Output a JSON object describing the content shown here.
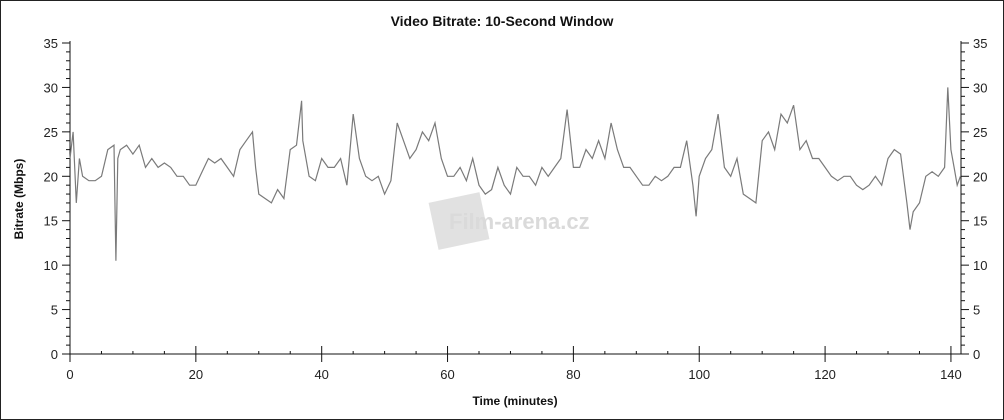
{
  "chart_data": {
    "type": "line",
    "title": "Video Bitrate: 10-Second Window",
    "xlabel": "Time (minutes)",
    "ylabel": "Bitrate (Mbps)",
    "xlim": [
      0,
      141.6
    ],
    "ylim": [
      0,
      35
    ],
    "x_ticks": [
      0,
      20,
      40,
      60,
      80,
      100,
      120,
      140
    ],
    "x_minor_step": 5,
    "y_ticks": [
      0,
      5,
      10,
      15,
      20,
      25,
      30,
      35
    ],
    "y_minor_step": 1,
    "y_axis_right": true,
    "grid": false,
    "line_color": "#7a7a7a",
    "series": [
      {
        "x": [
          0,
          0.5,
          1,
          1.5,
          2,
          3,
          4,
          5,
          6,
          7,
          7.3,
          7.6,
          8,
          9,
          10,
          11,
          12,
          13,
          14,
          15,
          16,
          17,
          18,
          19,
          20,
          21,
          22,
          23,
          24,
          25,
          26,
          27,
          28,
          29,
          29.5,
          30,
          31,
          32,
          33,
          34,
          35,
          36,
          36.8,
          37,
          38,
          39,
          40,
          41,
          42,
          43,
          44,
          45,
          46,
          47,
          48,
          49,
          50,
          51,
          52,
          53,
          54,
          55,
          56,
          57,
          58,
          59,
          60,
          61,
          62,
          63,
          64,
          65,
          66,
          67,
          68,
          69,
          70,
          71,
          72,
          73,
          74,
          75,
          76,
          77,
          78,
          79,
          80,
          81,
          82,
          83,
          84,
          85,
          86,
          87,
          88,
          89,
          90,
          91,
          92,
          93,
          94,
          95,
          96,
          97,
          98,
          99,
          99.5,
          100,
          101,
          102,
          103,
          104,
          105,
          106,
          107,
          108,
          109,
          110,
          111,
          112,
          113,
          114,
          115,
          116,
          117,
          118,
          119,
          120,
          121,
          122,
          123,
          124,
          125,
          126,
          127,
          128,
          129,
          130,
          131,
          132,
          133,
          133.5,
          134,
          135,
          136,
          137,
          138,
          139,
          139.5,
          140,
          140.5,
          141,
          141.5
        ],
        "y": [
          22,
          25,
          17,
          22,
          20,
          19.5,
          19.5,
          20,
          23,
          23.5,
          10.5,
          22,
          23,
          23.5,
          22.5,
          23.5,
          21,
          22,
          21,
          21.5,
          21,
          20,
          20,
          19,
          19,
          20.5,
          22,
          21.5,
          22,
          21,
          20,
          23,
          24,
          25,
          21,
          18,
          17.5,
          17,
          18.5,
          17.5,
          23,
          23.5,
          28.5,
          24,
          20,
          19.5,
          22,
          21,
          21,
          22,
          19,
          27,
          22,
          20,
          19.5,
          20,
          18,
          19.5,
          26,
          24,
          22,
          23,
          25,
          24,
          26,
          22,
          20,
          20,
          21,
          19.5,
          22,
          19,
          18,
          18.5,
          21,
          19,
          18,
          21,
          20,
          20,
          19,
          21,
          20,
          21,
          22,
          27.5,
          21,
          21,
          23,
          22,
          24,
          22,
          26,
          23,
          21,
          21,
          20,
          19,
          19,
          20,
          19.5,
          20,
          21,
          21,
          24,
          19,
          15.5,
          20,
          22,
          23,
          27,
          21,
          20,
          22,
          18,
          17.5,
          17,
          24,
          25,
          23,
          27,
          26,
          28,
          23,
          24,
          22,
          22,
          21,
          20,
          19.5,
          20,
          20,
          19,
          18.5,
          19,
          20,
          19,
          22,
          23,
          22.5,
          17,
          14,
          16,
          17,
          20,
          20.5,
          20,
          21,
          30,
          23,
          21,
          19,
          20
        ]
      }
    ]
  },
  "watermark": "Film-arena.cz"
}
